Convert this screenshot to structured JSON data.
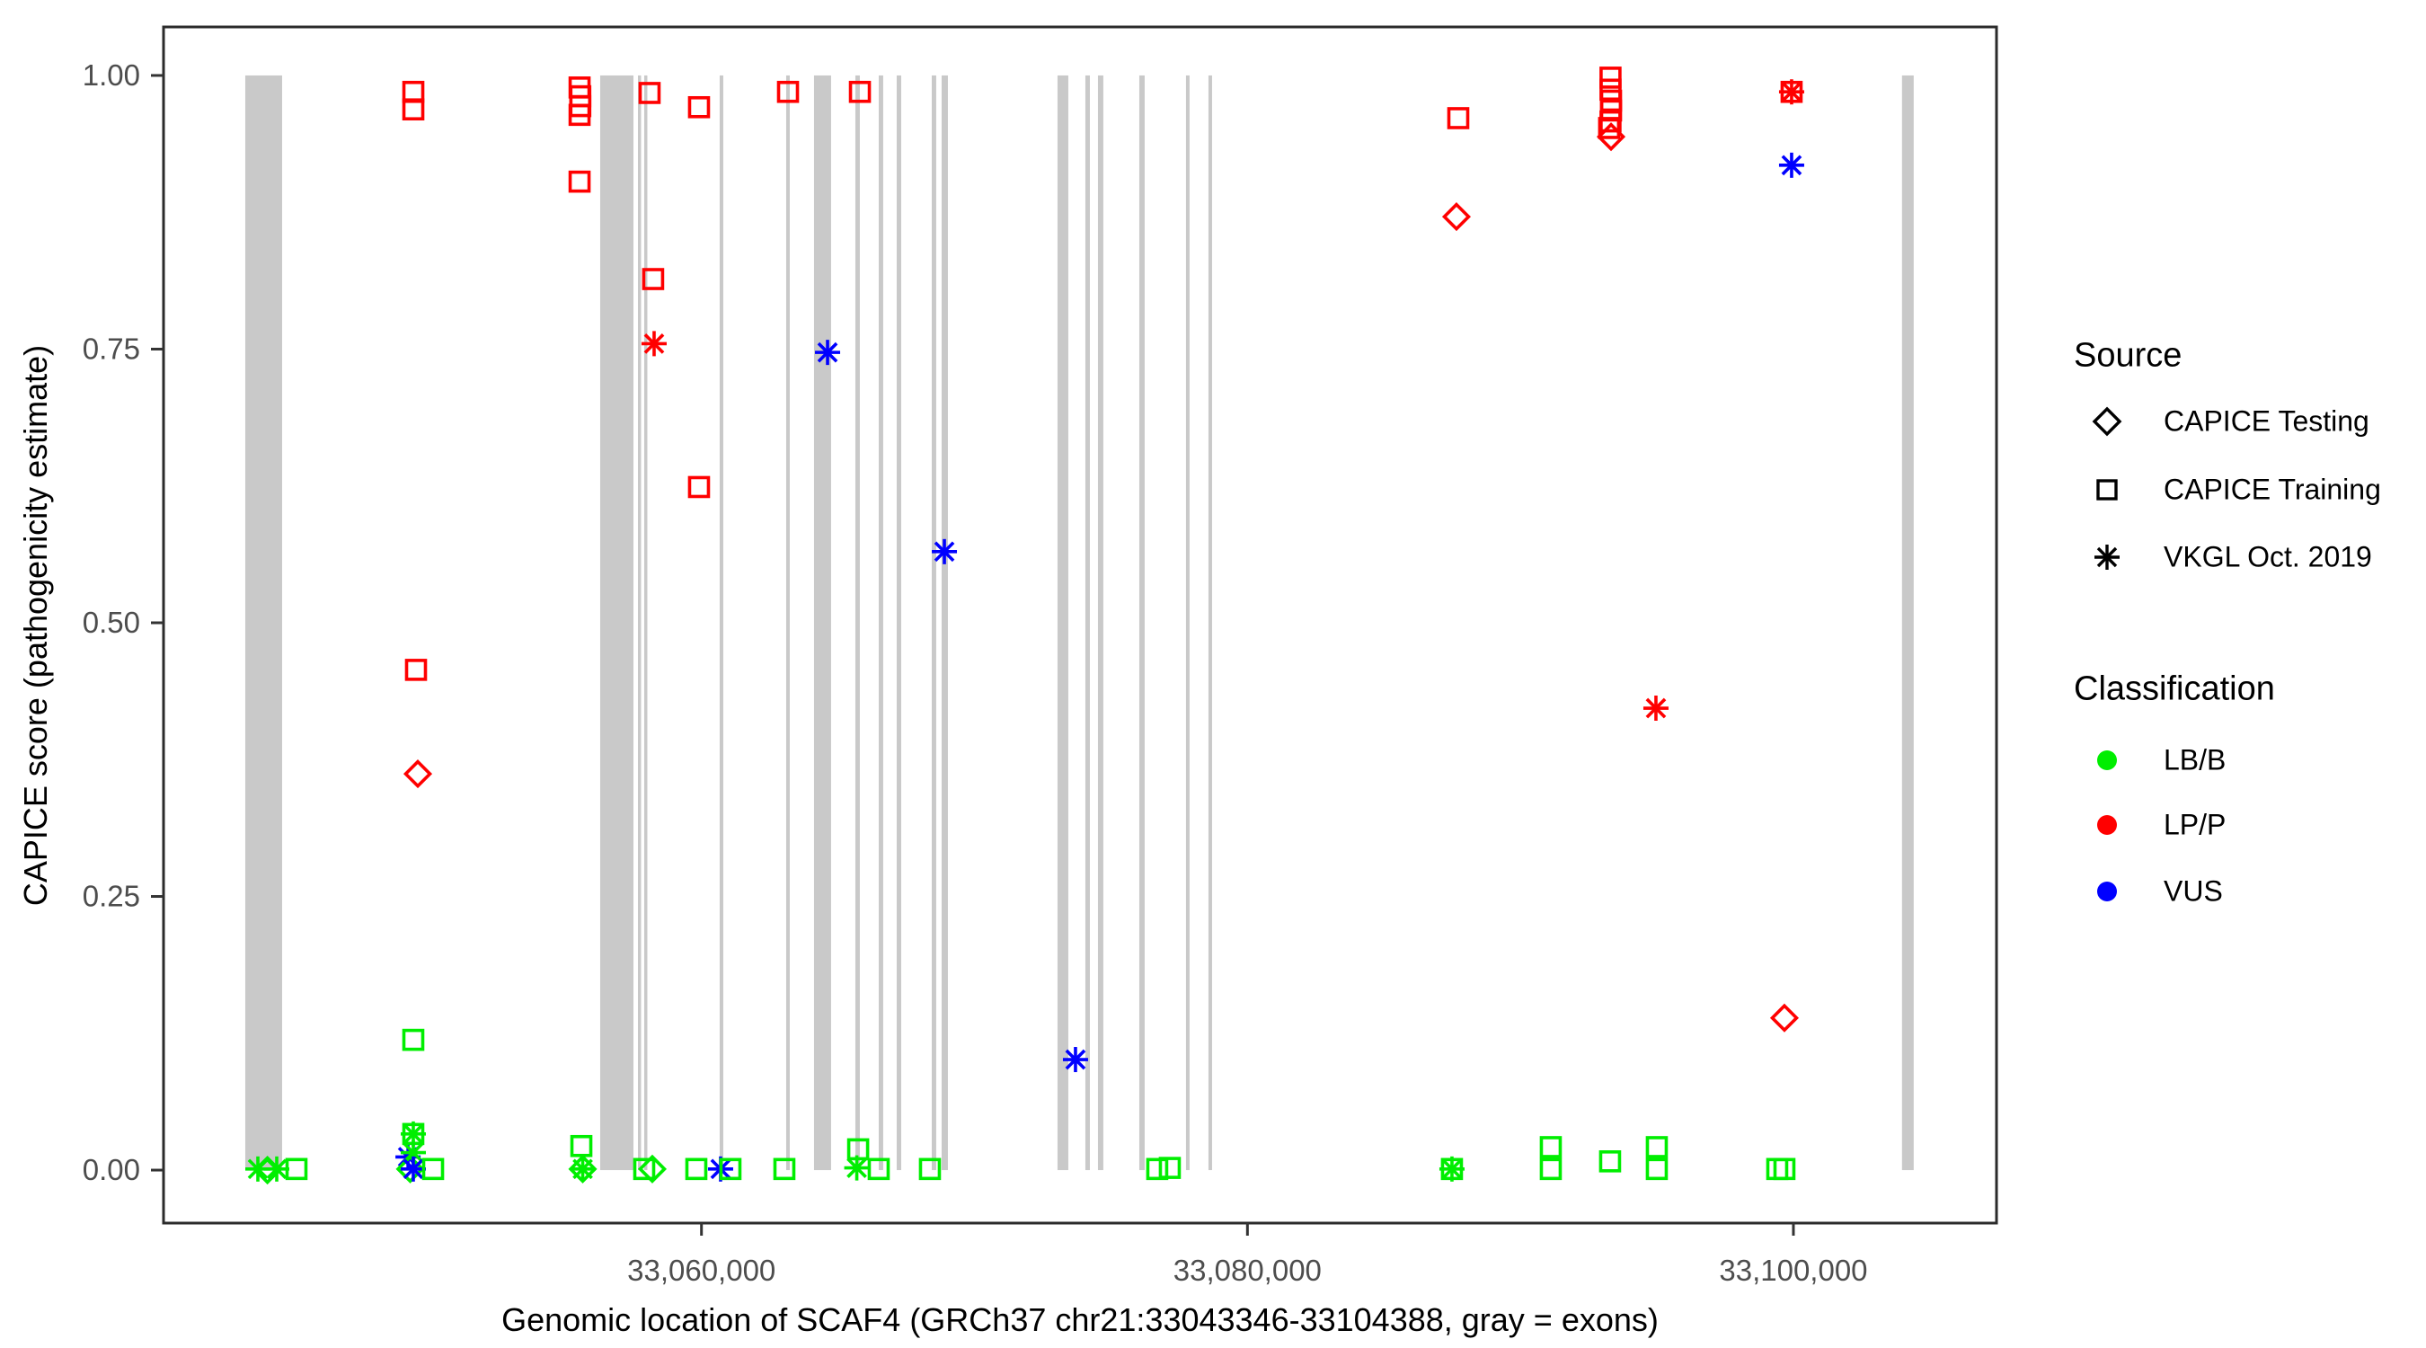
{
  "figure": {
    "x_axis_title": "Genomic location of SCAF4 (GRCh37 chr21:33043346-33104388, gray = exons)",
    "y_axis_title": "CAPICE score (pathogenicity estimate)",
    "background_color": "#FFFFFF",
    "panel_border_color": "#2B2B2B",
    "tick_color": "#333333",
    "tick_label_color": "#4D4D4D"
  },
  "legend": {
    "source": {
      "title": "Source",
      "items": [
        {
          "label": "CAPICE Testing",
          "shape": "diamond"
        },
        {
          "label": "CAPICE Training",
          "shape": "square"
        },
        {
          "label": "VKGL Oct. 2019",
          "shape": "asterisk"
        }
      ]
    },
    "classification": {
      "title": "Classification",
      "items": [
        {
          "label": "LB/B",
          "color": "#00EE00"
        },
        {
          "label": "LP/P",
          "color": "#FF0000"
        },
        {
          "label": "VUS",
          "color": "#0000FF"
        }
      ]
    }
  },
  "chart_data": {
    "type": "scatter",
    "title": "",
    "xlabel": "Genomic location of SCAF4 (GRCh37 chr21:33043346-33104388, gray = exons)",
    "ylabel": "CAPICE score (pathogenicity estimate)",
    "x_domain": [
      33040294,
      33107440
    ],
    "y_domain": [
      -0.0484,
      1.0443
    ],
    "grid": false,
    "legend_position": "right",
    "x_ticks": [
      {
        "value": 33060000,
        "label": "33,060,000"
      },
      {
        "value": 33080000,
        "label": "33,080,000"
      },
      {
        "value": 33100000,
        "label": "33,100,000"
      }
    ],
    "y_ticks": [
      {
        "value": 0.0,
        "label": "0.00"
      },
      {
        "value": 0.25,
        "label": "0.25"
      },
      {
        "value": 0.5,
        "label": "0.50"
      },
      {
        "value": 0.75,
        "label": "0.75"
      },
      {
        "value": 1.0,
        "label": "1.00"
      }
    ],
    "exon_color": "#C9C9C9",
    "class_colors": {
      "LB/B": "#00EE00",
      "LP/P": "#FF0000",
      "VUS": "#0000FF"
    },
    "shape_by_source": {
      "CAPICE Testing": "diamond",
      "CAPICE Training": "square",
      "VKGL Oct. 2019": "asterisk"
    },
    "exons": [
      {
        "start": 33043289,
        "end": 33044638
      },
      {
        "start": 33056290,
        "end": 33057508
      },
      {
        "start": 33057672,
        "end": 33057771
      },
      {
        "start": 33057902,
        "end": 33058001
      },
      {
        "start": 33060667,
        "end": 33060799
      },
      {
        "start": 33063103,
        "end": 33063234
      },
      {
        "start": 33064123,
        "end": 33064748
      },
      {
        "start": 33065637,
        "end": 33065801
      },
      {
        "start": 33066493,
        "end": 33066657
      },
      {
        "start": 33067151,
        "end": 33067316
      },
      {
        "start": 33068435,
        "end": 33068599
      },
      {
        "start": 33068797,
        "end": 33069027
      },
      {
        "start": 33073043,
        "end": 33073438
      },
      {
        "start": 33074063,
        "end": 33074228
      },
      {
        "start": 33074524,
        "end": 33074721
      },
      {
        "start": 33076038,
        "end": 33076235
      },
      {
        "start": 33077749,
        "end": 33077881
      },
      {
        "start": 33078572,
        "end": 33078704
      },
      {
        "start": 33103978,
        "end": 33104406
      }
    ],
    "points": [
      {
        "pos": 33043750,
        "score": 0.001,
        "source": "VKGL Oct. 2019",
        "classification": "LB/B"
      },
      {
        "pos": 33044100,
        "score": 0.0,
        "source": "CAPICE Testing",
        "classification": "LB/B"
      },
      {
        "pos": 33044441,
        "score": 0.001,
        "source": "VKGL Oct. 2019",
        "classification": "LB/B"
      },
      {
        "pos": 33045165,
        "score": 0.001,
        "source": "CAPICE Training",
        "classification": "LB/B"
      },
      {
        "pos": 33049250,
        "score": 0.012,
        "source": "VKGL Oct. 2019",
        "classification": "VUS"
      },
      {
        "pos": 33049330,
        "score": 0.001,
        "source": "CAPICE Testing",
        "classification": "LB/B"
      },
      {
        "pos": 33049444,
        "score": 0.033,
        "source": "CAPICE Training",
        "classification": "LB/B"
      },
      {
        "pos": 33049444,
        "score": 0.033,
        "source": "VKGL Oct. 2019",
        "classification": "LB/B"
      },
      {
        "pos": 33049444,
        "score": 0.016,
        "source": "VKGL Oct. 2019",
        "classification": "LB/B"
      },
      {
        "pos": 33049444,
        "score": 0.001,
        "source": "VKGL Oct. 2019",
        "classification": "VUS"
      },
      {
        "pos": 33049444,
        "score": 0.119,
        "source": "CAPICE Training",
        "classification": "LB/B"
      },
      {
        "pos": 33049445,
        "score": 0.985,
        "source": "CAPICE Training",
        "classification": "LP/P"
      },
      {
        "pos": 33049445,
        "score": 0.969,
        "source": "CAPICE Training",
        "classification": "LP/P"
      },
      {
        "pos": 33049543,
        "score": 0.457,
        "source": "CAPICE Training",
        "classification": "LP/P"
      },
      {
        "pos": 33049609,
        "score": 0.362,
        "source": "CAPICE Testing",
        "classification": "LP/P"
      },
      {
        "pos": 33050169,
        "score": 0.001,
        "source": "CAPICE Training",
        "classification": "LB/B"
      },
      {
        "pos": 33055535,
        "score": 0.989,
        "source": "CAPICE Training",
        "classification": "LP/P"
      },
      {
        "pos": 33055560,
        "score": 0.981,
        "source": "CAPICE Training",
        "classification": "LP/P"
      },
      {
        "pos": 33055560,
        "score": 0.972,
        "source": "CAPICE Training",
        "classification": "LP/P"
      },
      {
        "pos": 33055535,
        "score": 0.964,
        "source": "CAPICE Training",
        "classification": "LP/P"
      },
      {
        "pos": 33055535,
        "score": 0.903,
        "source": "CAPICE Training",
        "classification": "LP/P"
      },
      {
        "pos": 33055600,
        "score": 0.022,
        "source": "CAPICE Training",
        "classification": "LB/B"
      },
      {
        "pos": 33055650,
        "score": 0.001,
        "source": "VKGL Oct. 2019",
        "classification": "LB/B"
      },
      {
        "pos": 33055650,
        "score": 0.001,
        "source": "CAPICE Testing",
        "classification": "LB/B"
      },
      {
        "pos": 33057903,
        "score": 0.001,
        "source": "CAPICE Training",
        "classification": "LB/B"
      },
      {
        "pos": 33058100,
        "score": 0.984,
        "source": "CAPICE Training",
        "classification": "LP/P"
      },
      {
        "pos": 33058199,
        "score": 0.001,
        "source": "CAPICE Testing",
        "classification": "LB/B"
      },
      {
        "pos": 33058230,
        "score": 0.814,
        "source": "CAPICE Training",
        "classification": "LP/P"
      },
      {
        "pos": 33058265,
        "score": 0.755,
        "source": "VKGL Oct. 2019",
        "classification": "LP/P"
      },
      {
        "pos": 33059812,
        "score": 0.001,
        "source": "CAPICE Training",
        "classification": "LB/B"
      },
      {
        "pos": 33059910,
        "score": 0.971,
        "source": "CAPICE Training",
        "classification": "LP/P"
      },
      {
        "pos": 33059910,
        "score": 0.624,
        "source": "CAPICE Training",
        "classification": "LP/P"
      },
      {
        "pos": 33060700,
        "score": 0.001,
        "source": "VKGL Oct. 2019",
        "classification": "VUS"
      },
      {
        "pos": 33061062,
        "score": 0.001,
        "source": "CAPICE Training",
        "classification": "LB/B"
      },
      {
        "pos": 33063037,
        "score": 0.001,
        "source": "CAPICE Training",
        "classification": "LB/B"
      },
      {
        "pos": 33063170,
        "score": 0.985,
        "source": "CAPICE Training",
        "classification": "LP/P"
      },
      {
        "pos": 33064619,
        "score": 0.747,
        "source": "VKGL Oct. 2019",
        "classification": "VUS"
      },
      {
        "pos": 33065690,
        "score": 0.002,
        "source": "VKGL Oct. 2019",
        "classification": "LB/B"
      },
      {
        "pos": 33065740,
        "score": 0.019,
        "source": "CAPICE Training",
        "classification": "LB/B"
      },
      {
        "pos": 33065804,
        "score": 0.985,
        "source": "CAPICE Training",
        "classification": "LP/P"
      },
      {
        "pos": 33066493,
        "score": 0.001,
        "source": "CAPICE Training",
        "classification": "LB/B"
      },
      {
        "pos": 33068369,
        "score": 0.001,
        "source": "CAPICE Training",
        "classification": "LB/B"
      },
      {
        "pos": 33068898,
        "score": 0.565,
        "source": "VKGL Oct. 2019",
        "classification": "VUS"
      },
      {
        "pos": 33073701,
        "score": 0.101,
        "source": "VKGL Oct. 2019",
        "classification": "VUS"
      },
      {
        "pos": 33076696,
        "score": 0.001,
        "source": "CAPICE Training",
        "classification": "LB/B"
      },
      {
        "pos": 33077157,
        "score": 0.002,
        "source": "CAPICE Training",
        "classification": "LB/B"
      },
      {
        "pos": 33087492,
        "score": 0.001,
        "source": "VKGL Oct. 2019",
        "classification": "LB/B"
      },
      {
        "pos": 33087492,
        "score": 0.001,
        "source": "CAPICE Training",
        "classification": "LB/B"
      },
      {
        "pos": 33087657,
        "score": 0.871,
        "source": "CAPICE Testing",
        "classification": "LP/P"
      },
      {
        "pos": 33087724,
        "score": 0.961,
        "source": "CAPICE Training",
        "classification": "LP/P"
      },
      {
        "pos": 33091113,
        "score": 0.021,
        "source": "CAPICE Training",
        "classification": "LB/B"
      },
      {
        "pos": 33091113,
        "score": 0.001,
        "source": "CAPICE Training",
        "classification": "LB/B"
      },
      {
        "pos": 33093250,
        "score": 0.952,
        "source": "CAPICE Training",
        "classification": "LP/P"
      },
      {
        "pos": 33093285,
        "score": 0.008,
        "source": "CAPICE Training",
        "classification": "LB/B"
      },
      {
        "pos": 33093300,
        "score": 0.998,
        "source": "CAPICE Training",
        "classification": "LP/P"
      },
      {
        "pos": 33093300,
        "score": 0.987,
        "source": "CAPICE Training",
        "classification": "LP/P"
      },
      {
        "pos": 33093320,
        "score": 0.977,
        "source": "CAPICE Training",
        "classification": "LP/P"
      },
      {
        "pos": 33093320,
        "score": 0.968,
        "source": "CAPICE Training",
        "classification": "LP/P"
      },
      {
        "pos": 33093300,
        "score": 0.958,
        "source": "CAPICE Training",
        "classification": "LP/P"
      },
      {
        "pos": 33093320,
        "score": 0.944,
        "source": "CAPICE Testing",
        "classification": "LP/P"
      },
      {
        "pos": 33094964,
        "score": 0.422,
        "source": "VKGL Oct. 2019",
        "classification": "LP/P"
      },
      {
        "pos": 33094997,
        "score": 0.021,
        "source": "CAPICE Training",
        "classification": "LB/B"
      },
      {
        "pos": 33094997,
        "score": 0.001,
        "source": "CAPICE Training",
        "classification": "LB/B"
      },
      {
        "pos": 33099408,
        "score": 0.001,
        "source": "CAPICE Training",
        "classification": "LB/B"
      },
      {
        "pos": 33099671,
        "score": 0.001,
        "source": "CAPICE Training",
        "classification": "LB/B"
      },
      {
        "pos": 33099671,
        "score": 0.139,
        "source": "CAPICE Testing",
        "classification": "LP/P"
      },
      {
        "pos": 33099934,
        "score": 0.985,
        "source": "VKGL Oct. 2019",
        "classification": "LP/P"
      },
      {
        "pos": 33099934,
        "score": 0.985,
        "source": "CAPICE Training",
        "classification": "LP/P"
      },
      {
        "pos": 33099934,
        "score": 0.918,
        "source": "VKGL Oct. 2019",
        "classification": "VUS"
      }
    ]
  }
}
